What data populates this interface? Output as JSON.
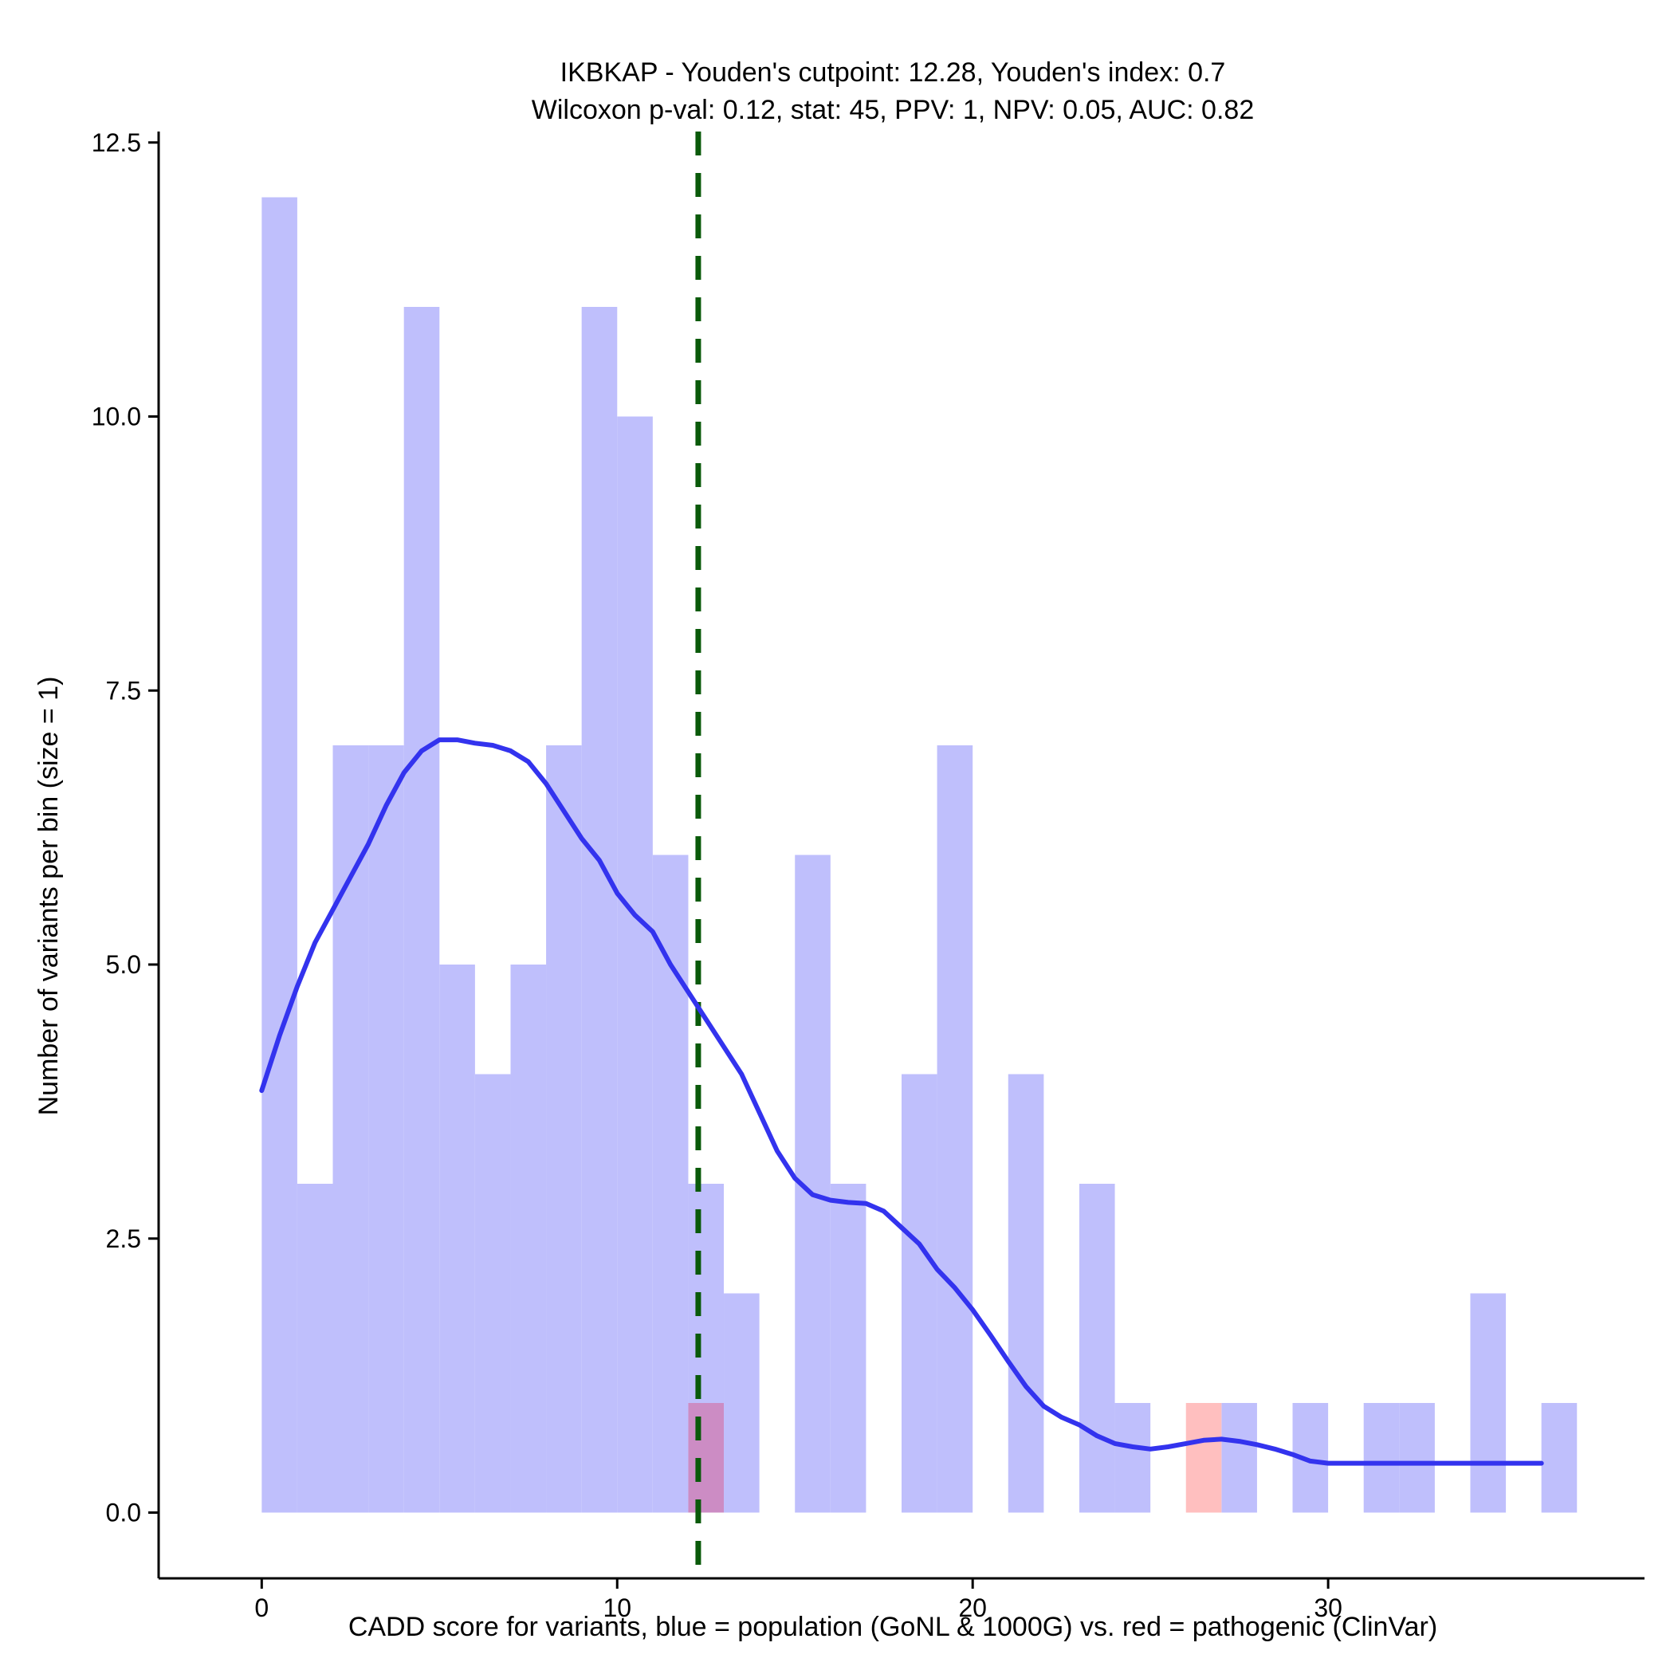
{
  "chart_data": {
    "type": "bar",
    "title_line1": "IKBKAP - Youden's cutpoint: 12.28, Youden's index: 0.7",
    "title_line2": "Wilcoxon p-val: 0.12, stat: 45, PPV: 1, NPV: 0.05, AUC: 0.82",
    "xlabel": "CADD score for variants, blue = population (GoNL & 1000G) vs. red = pathogenic (ClinVar)",
    "ylabel": "Number of variants per bin (size = 1)",
    "xlim": [
      -2.9,
      38.9
    ],
    "ylim": [
      -0.6,
      12.6
    ],
    "x_ticks": [
      0,
      10,
      20,
      30
    ],
    "x_tick_labels": [
      "0",
      "10",
      "20",
      "30"
    ],
    "y_ticks": [
      0,
      2.5,
      5,
      7.5,
      10,
      12.5
    ],
    "y_tick_labels": [
      "0.0",
      "2.5",
      "5.0",
      "7.5",
      "10.0",
      "12.5"
    ],
    "bin_size": 1,
    "cutpoint": 12.28,
    "colors": {
      "population": "#bfbffc",
      "pathogenic": "#ffbfbf",
      "overlap": "#cc8cc4",
      "density": "#3333ee",
      "cutpoint": "#0a5a0a"
    },
    "series": [
      {
        "name": "population",
        "bins": [
          [
            0,
            12
          ],
          [
            1,
            3
          ],
          [
            2,
            7
          ],
          [
            3,
            7
          ],
          [
            4,
            11
          ],
          [
            5,
            5
          ],
          [
            6,
            4
          ],
          [
            7,
            5
          ],
          [
            8,
            7
          ],
          [
            9,
            11
          ],
          [
            10,
            10
          ],
          [
            11,
            6
          ],
          [
            12,
            3
          ],
          [
            13,
            2
          ],
          [
            15,
            6
          ],
          [
            16,
            3
          ],
          [
            18,
            4
          ],
          [
            19,
            7
          ],
          [
            21,
            4
          ],
          [
            23,
            3
          ],
          [
            24,
            1
          ],
          [
            27,
            1
          ],
          [
            29,
            1
          ],
          [
            31,
            1
          ],
          [
            32,
            1
          ],
          [
            34,
            2
          ],
          [
            36,
            1
          ]
        ]
      },
      {
        "name": "pathogenic",
        "bins": [
          [
            12,
            1
          ],
          [
            26,
            1
          ]
        ]
      }
    ],
    "density": {
      "name": "population density",
      "x": [
        0,
        0.5,
        1,
        1.5,
        2,
        2.5,
        3,
        3.5,
        4,
        4.5,
        5,
        5.5,
        6,
        6.5,
        7,
        7.5,
        8,
        8.5,
        9,
        9.5,
        10,
        10.5,
        11,
        11.5,
        12,
        12.5,
        13,
        13.5,
        14,
        14.5,
        15,
        15.5,
        16,
        16.5,
        17,
        17.5,
        18,
        18.5,
        19,
        19.5,
        20,
        20.5,
        21,
        21.5,
        22,
        22.5,
        23,
        23.5,
        24,
        24.5,
        25,
        25.5,
        26,
        26.5,
        27,
        27.5,
        28,
        28.5,
        29,
        29.5,
        30,
        30.5,
        31,
        31.5,
        32,
        32.5,
        33,
        33.5,
        34,
        34.5,
        35,
        35.5,
        36
      ],
      "y": [
        3.85,
        4.35,
        4.8,
        5.2,
        5.5,
        5.8,
        6.1,
        6.45,
        6.75,
        6.95,
        7.05,
        7.05,
        7.02,
        7.0,
        6.95,
        6.85,
        6.65,
        6.4,
        6.15,
        5.95,
        5.65,
        5.45,
        5.3,
        5.0,
        4.75,
        4.5,
        4.25,
        4.0,
        3.65,
        3.3,
        3.05,
        2.9,
        2.85,
        2.83,
        2.82,
        2.75,
        2.6,
        2.45,
        2.22,
        2.05,
        1.85,
        1.62,
        1.38,
        1.15,
        0.97,
        0.87,
        0.8,
        0.7,
        0.63,
        0.6,
        0.58,
        0.6,
        0.63,
        0.66,
        0.67,
        0.65,
        0.62,
        0.58,
        0.53,
        0.47,
        0.45,
        0.45,
        0.45,
        0.45,
        0.45,
        0.45,
        0.45,
        0.45,
        0.45,
        0.45,
        0.45,
        0.45,
        0.45
      ]
    }
  }
}
